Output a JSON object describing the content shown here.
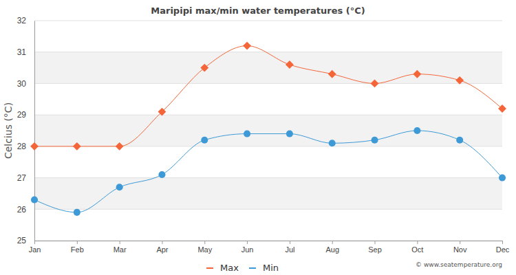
{
  "chart_data": {
    "type": "line",
    "title": "Maripipi max/min water temperatures (°C)",
    "y_label": "Celcius (°C)",
    "categories": [
      "Jan",
      "Feb",
      "Mar",
      "Apr",
      "May",
      "Jun",
      "Jul",
      "Aug",
      "Sep",
      "Oct",
      "Nov",
      "Dec"
    ],
    "series": [
      {
        "name": "Max",
        "color": "#f4663a",
        "marker": "diamond",
        "line_style": "solid",
        "values": [
          28,
          28,
          28,
          29.1,
          30.5,
          31.2,
          30.6,
          30.3,
          30,
          30.3,
          30.1,
          29.2
        ]
      },
      {
        "name": "Min",
        "color": "#3d9ad6",
        "marker": "circle",
        "line_style": "solid",
        "values": [
          26.3,
          25.9,
          26.7,
          27.1,
          28.2,
          28.4,
          28.4,
          28.1,
          28.2,
          28.5,
          28.2,
          27
        ]
      }
    ],
    "ylim": [
      25,
      32
    ],
    "yticks": [
      25,
      26,
      27,
      28,
      29,
      30,
      31,
      32
    ],
    "grid": true,
    "legend": "bottom",
    "annotations": [
      "© www.seatemperature.org"
    ]
  }
}
